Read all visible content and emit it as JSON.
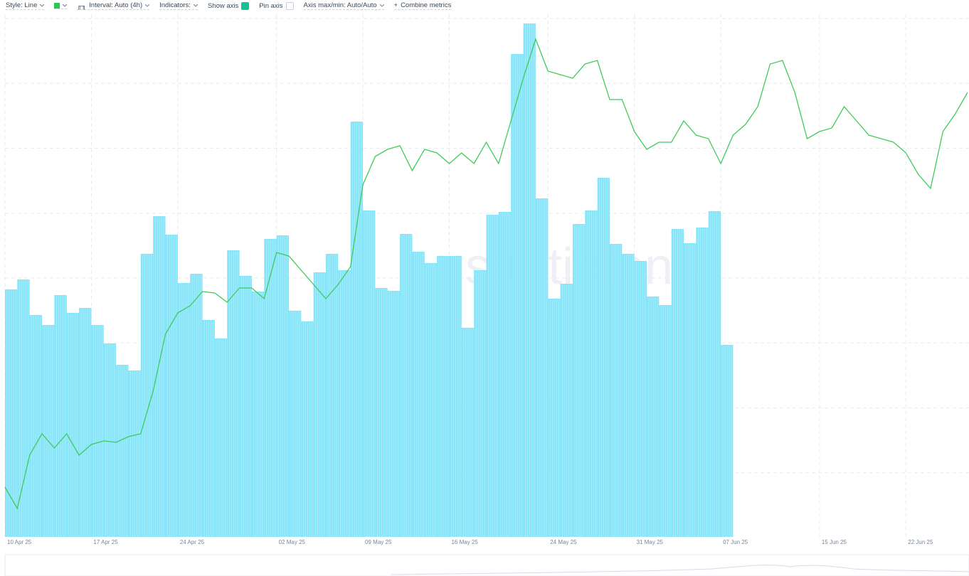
{
  "toolbar": {
    "style": "Style: Line",
    "interval": "Interval: Auto (4h)",
    "indicators": "Indicators:",
    "show_axis": "Show axis",
    "pin_axis": "Pin axis",
    "axis_minmax": "Axis max/min: Auto/Auto",
    "combine": "Combine metrics"
  },
  "chart_data": {
    "type": "combo",
    "watermark": "santiment.",
    "x": [
      "2025-04-10",
      "2025-04-11",
      "2025-04-12",
      "2025-04-13",
      "2025-04-14",
      "2025-04-15",
      "2025-04-16",
      "2025-04-17",
      "2025-04-18",
      "2025-04-19",
      "2025-04-20",
      "2025-04-21",
      "2025-04-22",
      "2025-04-23",
      "2025-04-24",
      "2025-04-25",
      "2025-04-26",
      "2025-04-27",
      "2025-04-28",
      "2025-04-29",
      "2025-04-30",
      "2025-05-01",
      "2025-05-02",
      "2025-05-03",
      "2025-05-04",
      "2025-05-05",
      "2025-05-06",
      "2025-05-07",
      "2025-05-08",
      "2025-05-09",
      "2025-05-10",
      "2025-05-11",
      "2025-05-12",
      "2025-05-13",
      "2025-05-14",
      "2025-05-15",
      "2025-05-16",
      "2025-05-17",
      "2025-05-18",
      "2025-05-19",
      "2025-05-20",
      "2025-05-21",
      "2025-05-22",
      "2025-05-23",
      "2025-05-24",
      "2025-05-25",
      "2025-05-26",
      "2025-05-27",
      "2025-05-28",
      "2025-05-29",
      "2025-05-30",
      "2025-05-31",
      "2025-06-01",
      "2025-06-02",
      "2025-06-03",
      "2025-06-04",
      "2025-06-05",
      "2025-06-06",
      "2025-06-07",
      "2025-06-08",
      "2025-06-09",
      "2025-06-10",
      "2025-06-11",
      "2025-06-12",
      "2025-06-13",
      "2025-06-14",
      "2025-06-15",
      "2025-06-16",
      "2025-06-17",
      "2025-06-18",
      "2025-06-19",
      "2025-06-20",
      "2025-06-21",
      "2025-06-22",
      "2025-06-23",
      "2025-06-24",
      "2025-06-25",
      "2025-06-26",
      "2025-06-27"
    ],
    "bars": {
      "color": "#86e5f8",
      "values": [
        348,
        362,
        312,
        298,
        340,
        315,
        322,
        298,
        272,
        242,
        234,
        398,
        451,
        425,
        357,
        370,
        305,
        279,
        403,
        367,
        345,
        419,
        424,
        318,
        303,
        372,
        398,
        375,
        584,
        459,
        350,
        346,
        426,
        401,
        385,
        395,
        395,
        294,
        375,
        453,
        457,
        679,
        722,
        476,
        335,
        356,
        440,
        459,
        505,
        412,
        398,
        388,
        338,
        326,
        433,
        413,
        435,
        458,
        270,
        null,
        null,
        null,
        null,
        null,
        null,
        null,
        null,
        null,
        null,
        null,
        null,
        null,
        null,
        null,
        null,
        null,
        null,
        null,
        null
      ]
    },
    "line": {
      "color": "#3fcb5a",
      "values": [
        70,
        40,
        115,
        145,
        125,
        145,
        115,
        130,
        135,
        133,
        141,
        145,
        205,
        285,
        315,
        325,
        345,
        343,
        330,
        350,
        350,
        335,
        400,
        395,
        375,
        355,
        335,
        355,
        380,
        495,
        535,
        545,
        550,
        515,
        545,
        540,
        525,
        540,
        525,
        555,
        525,
        585,
        645,
        700,
        655,
        650,
        645,
        665,
        670,
        615,
        615,
        570,
        545,
        555,
        555,
        585,
        565,
        560,
        525,
        565,
        580,
        605,
        665,
        670,
        625,
        560,
        570,
        575,
        605,
        585,
        565,
        560,
        555,
        540,
        510,
        490,
        570,
        595,
        625
      ]
    },
    "xlim": [
      "2025-04-10",
      "2025-06-27"
    ],
    "ylim": [
      0,
      730
    ],
    "xticks": [
      {
        "value": "2025-04-10",
        "label": "10 Apr 25"
      },
      {
        "value": "2025-04-17",
        "label": "17 Apr 25"
      },
      {
        "value": "2025-04-24",
        "label": "24 Apr 25"
      },
      {
        "value": "2025-05-02",
        "label": "02 May 25"
      },
      {
        "value": "2025-05-09",
        "label": "09 May 25"
      },
      {
        "value": "2025-05-16",
        "label": "16 May 25"
      },
      {
        "value": "2025-05-24",
        "label": "24 May 25"
      },
      {
        "value": "2025-05-31",
        "label": "31 May 25"
      },
      {
        "value": "2025-06-07",
        "label": "07 Jun 25"
      },
      {
        "value": "2025-06-15",
        "label": "15 Jun 25"
      },
      {
        "value": "2025-06-22",
        "label": "22 Jun 25"
      }
    ],
    "grid": true
  }
}
